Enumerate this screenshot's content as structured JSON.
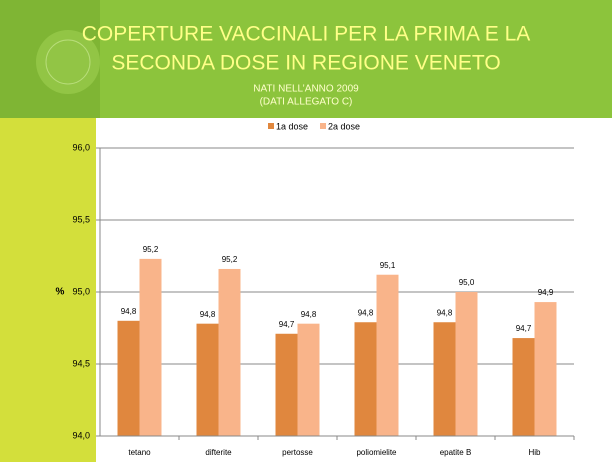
{
  "chart_data": {
    "type": "bar",
    "title": "COPERTURE VACCINALI PER LA PRIMA E LA",
    "title_line2": "SECONDA DOSE IN REGIONE VENETO",
    "subtitle": "NATI NELL’ANNO 2009",
    "subtitle_line2": "(DATI ALLEGATO C)",
    "y_label": "%",
    "categories": [
      "tetano",
      "difterite",
      "pertosse",
      "poliomielite",
      "epatite B",
      "Hib"
    ],
    "series": [
      {
        "name": "1a dose",
        "color": "#e0873e",
        "values": [
          94.8,
          94.78,
          94.71,
          94.79,
          94.79,
          94.68
        ],
        "value_labels": [
          "94,8",
          "94,8",
          "94,7",
          "94,8",
          "94,8",
          "94,7"
        ]
      },
      {
        "name": "2a dose",
        "color": "#f9b48a",
        "values": [
          95.23,
          95.16,
          94.78,
          95.12,
          95.0,
          94.93
        ],
        "value_labels": [
          "95,2",
          "95,2",
          "94,8",
          "95,1",
          "95,0",
          "94,9"
        ]
      }
    ],
    "ylim": [
      94,
      96
    ],
    "yticks": [
      {
        "value": 94,
        "label": "94,0"
      },
      {
        "value": 94.5,
        "label": "94,5"
      },
      {
        "value": 95,
        "label": "95,0"
      },
      {
        "value": 95.5,
        "label": "95,5"
      },
      {
        "value": 96,
        "label": "96,0"
      }
    ],
    "grid": true,
    "legend": "top"
  }
}
